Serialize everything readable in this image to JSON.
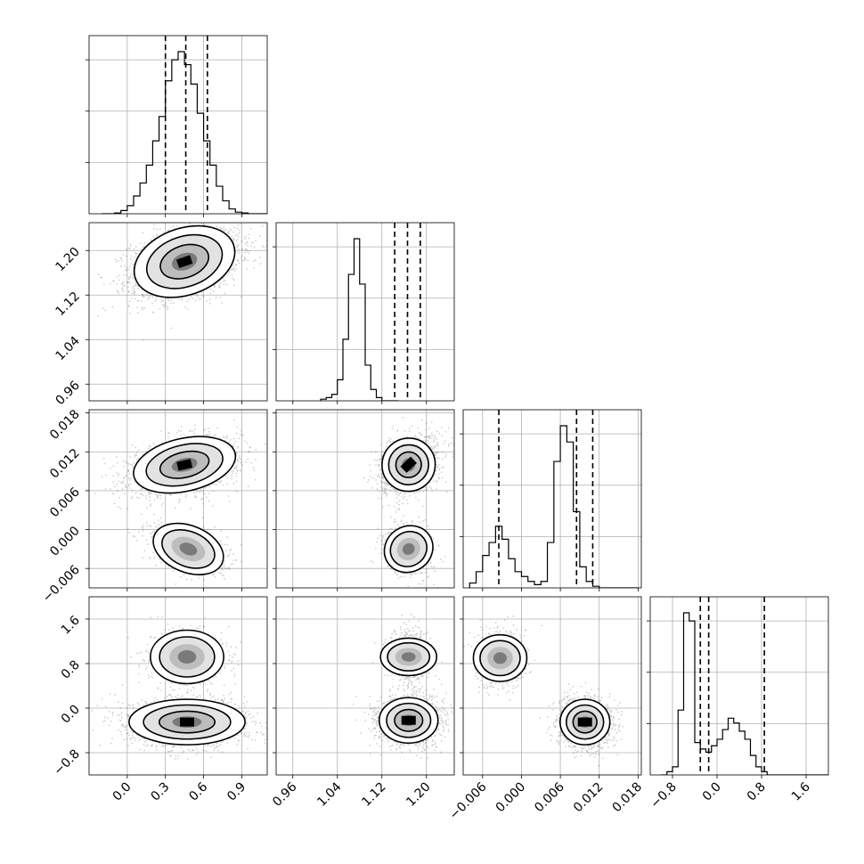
{
  "chart_data": {
    "type": "corner",
    "parameters": [
      {
        "ticks": [
          0.0,
          0.3,
          0.6,
          0.9
        ],
        "tick_labels": [
          "0.0",
          "0.3",
          "0.6",
          "0.9"
        ],
        "range": [
          -0.3,
          1.1
        ],
        "quantiles": [
          0.3,
          0.46,
          0.63
        ],
        "hist": {
          "edges_start": -0.2,
          "bin": 0.05,
          "counts": [
            0,
            0,
            0.5,
            2,
            5,
            11,
            19,
            30,
            45,
            60,
            82,
            95,
            100,
            92,
            80,
            62,
            45,
            30,
            17,
            8,
            3,
            1,
            0.5,
            0,
            0,
            0,
            0,
            0
          ]
        }
      },
      {
        "ticks": [
          0.96,
          1.04,
          1.12,
          1.2
        ],
        "tick_labels": [
          "0.96",
          "1.04",
          "1.12",
          "1.20"
        ],
        "range": [
          0.93,
          1.25
        ],
        "quantiles": [
          1.143,
          1.166,
          1.189
        ],
        "hist": {
          "edges_start": 1.01,
          "bin": 0.01,
          "counts": [
            1,
            2,
            4,
            13,
            38,
            78,
            100,
            72,
            22,
            7,
            2,
            0,
            0,
            0
          ]
        }
      },
      {
        "ticks": [
          -0.006,
          0.0,
          0.006,
          0.012,
          0.018
        ],
        "tick_labels": [
          "−0.006",
          "0.000",
          "0.006",
          "0.012",
          "0.018"
        ],
        "range": [
          -0.009,
          0.0185
        ],
        "quantiles": [
          -0.0035,
          0.0085,
          0.011
        ],
        "hist": {
          "edges_start": -0.008,
          "bin": 0.001,
          "counts": [
            3,
            10,
            20,
            28,
            38,
            30,
            18,
            10,
            7,
            4,
            2,
            4,
            28,
            78,
            100,
            90,
            47,
            13,
            4,
            1,
            0,
            0,
            0,
            0,
            0,
            0
          ]
        }
      },
      {
        "ticks": [
          -0.8,
          0.0,
          0.8,
          1.6
        ],
        "tick_labels": [
          "−0.8",
          "0.0",
          "0.8",
          "1.6"
        ],
        "range": [
          -1.2,
          2.0
        ],
        "quantiles": [
          -0.3,
          -0.15,
          0.85
        ],
        "hist": {
          "edges_start": -1.0,
          "bin": 0.1,
          "counts": [
            0,
            2,
            5,
            40,
            100,
            95,
            20,
            16,
            14,
            18,
            22,
            28,
            35,
            32,
            27,
            22,
            12,
            5,
            2,
            0,
            0,
            0,
            0,
            0,
            0,
            0,
            0,
            0,
            0,
            0
          ]
        }
      }
    ],
    "pairs": [
      {
        "row": 1,
        "col": 0,
        "modes": [
          {
            "cx": 0.45,
            "cy": 1.18,
            "sx": 0.17,
            "sy": 0.025,
            "rho": 0.35,
            "w": 1.0
          }
        ]
      },
      {
        "row": 2,
        "col": 0,
        "modes": [
          {
            "cx": 0.45,
            "cy": 0.01,
            "sx": 0.17,
            "sy": 0.0017,
            "rho": 0.35,
            "w": 0.72
          },
          {
            "cx": 0.48,
            "cy": -0.003,
            "sx": 0.12,
            "sy": 0.0015,
            "rho": -0.45,
            "w": 0.28
          }
        ]
      },
      {
        "row": 2,
        "col": 1,
        "modes": [
          {
            "cx": 1.168,
            "cy": 0.01,
            "sx": 0.02,
            "sy": 0.0017,
            "rho": 0.3,
            "w": 0.72
          },
          {
            "cx": 1.168,
            "cy": -0.003,
            "sx": 0.017,
            "sy": 0.0016,
            "rho": -0.2,
            "w": 0.28
          }
        ]
      },
      {
        "row": 3,
        "col": 0,
        "modes": [
          {
            "cx": 0.47,
            "cy": -0.25,
            "sx": 0.19,
            "sy": 0.17,
            "rho": 0.0,
            "w": 0.72
          },
          {
            "cx": 0.47,
            "cy": 0.92,
            "sx": 0.12,
            "sy": 0.2,
            "rho": 0.0,
            "w": 0.28
          }
        ]
      },
      {
        "row": 3,
        "col": 1,
        "modes": [
          {
            "cx": 1.168,
            "cy": -0.22,
            "sx": 0.022,
            "sy": 0.17,
            "rho": 0.0,
            "w": 0.72
          },
          {
            "cx": 1.168,
            "cy": 0.92,
            "sx": 0.014,
            "sy": 0.21,
            "rho": 0.0,
            "w": 0.28
          }
        ]
      },
      {
        "row": 3,
        "col": 2,
        "modes": [
          {
            "cx": 0.0098,
            "cy": -0.25,
            "sx": 0.0016,
            "sy": 0.17,
            "rho": 0.0,
            "w": 0.72
          },
          {
            "cx": -0.0033,
            "cy": 0.9,
            "sx": 0.0015,
            "sy": 0.2,
            "rho": 0.0,
            "w": 0.28
          }
        ]
      }
    ],
    "contour_levels": [
      0.39,
      0.86,
      1.0
    ],
    "grid": true,
    "xlabel": "",
    "ylabel": "",
    "title": ""
  }
}
